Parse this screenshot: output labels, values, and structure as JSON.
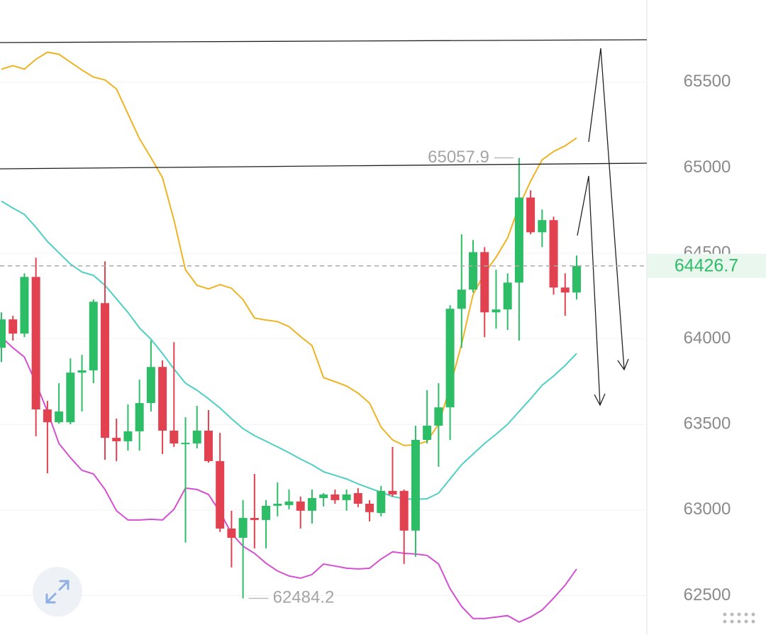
{
  "chart_data": {
    "type": "candlestick",
    "up_color": "#2dbd67",
    "down_color": "#e2414f",
    "open": [
      63948,
      64114,
      64031,
      64362,
      63588,
      63513,
      63513,
      63803,
      63816,
      64209,
      63422,
      63402,
      63460,
      63625,
      63836,
      63464,
      63389,
      63389,
      63464,
      63286,
      62892,
      62838,
      62954,
      62942,
      63025,
      63029,
      63050,
      62996,
      63070,
      63091,
      63058,
      63099,
      63037,
      62983,
      63112,
      63112,
      62880,
      63410,
      63493,
      63600,
      64176,
      64288,
      64507,
      64155,
      64172,
      64329,
      64826,
      64623,
      64694,
      64300,
      64271
    ],
    "high": [
      64155,
      64135,
      64383,
      64474,
      63638,
      63741,
      63886,
      63907,
      64230,
      64453,
      63534,
      63617,
      63762,
      63990,
      63874,
      63981,
      63542,
      63609,
      63584,
      63451,
      62996,
      63058,
      63211,
      63058,
      63161,
      63120,
      63079,
      63120,
      63099,
      63120,
      63120,
      63128,
      63058,
      63141,
      63369,
      63120,
      63493,
      63700,
      63741,
      64197,
      64611,
      64578,
      64536,
      64404,
      64383,
      65057.9,
      64868,
      64756,
      64714,
      64383,
      64487
    ],
    "low": [
      63865,
      63990,
      64010,
      63431,
      63215,
      63505,
      63501,
      63576,
      63741,
      63294,
      63286,
      63348,
      63348,
      63576,
      63327,
      63369,
      62810,
      63360,
      63277,
      62872,
      62665,
      62484.2,
      62776,
      62776,
      62963,
      63004,
      62892,
      62921,
      63021,
      63037,
      62996,
      63017,
      62934,
      62963,
      63079,
      62685,
      62727,
      63389,
      63253,
      63410,
      63948,
      64271,
      64010,
      64060,
      64052,
      63990,
      64611,
      64536,
      64259,
      64135,
      64230
    ],
    "close": [
      64114,
      64031,
      64362,
      63588,
      63513,
      63576,
      63803,
      63816,
      64217,
      63422,
      63402,
      63460,
      63625,
      63836,
      63464,
      63389,
      63393,
      63464,
      63286,
      62892,
      62838,
      62954,
      62942,
      63025,
      63037,
      63050,
      62996,
      63070,
      63091,
      63058,
      63091,
      63037,
      62988,
      63112,
      63091,
      62880,
      63410,
      63493,
      63600,
      64176,
      64288,
      64507,
      64155,
      64172,
      64329,
      64826,
      64623,
      64694,
      64300,
      64271,
      64426.7
    ],
    "lines": [
      {
        "color": "#f0b323",
        "values": [
          65576,
          65596,
          65576,
          65634,
          65675,
          65663,
          65617,
          65571,
          65530,
          65513,
          65460,
          65315,
          65170,
          65058,
          64942,
          64694,
          64404,
          64313,
          64292,
          64317,
          64296,
          64230,
          64122,
          64110,
          64101,
          64072,
          64014,
          63961,
          63774,
          63750,
          63725,
          63683,
          63625,
          63484,
          63410,
          63377,
          63381,
          63402,
          63501,
          63720,
          63969,
          64259,
          64383,
          64478,
          64590,
          64776,
          64921,
          65046,
          65095,
          65128,
          65174
        ]
      },
      {
        "color": "#4fcfc3",
        "values": [
          64805,
          64764,
          64727,
          64652,
          64569,
          64503,
          64437,
          64391,
          64371,
          64313,
          64234,
          64155,
          64064,
          63998,
          63915,
          63824,
          63741,
          63700,
          63650,
          63596,
          63534,
          63476,
          63435,
          63402,
          63369,
          63335,
          63298,
          63265,
          63224,
          63203,
          63182,
          63153,
          63128,
          63104,
          63079,
          63066,
          63062,
          63066,
          63099,
          63182,
          63265,
          63327,
          63389,
          63443,
          63501,
          63576,
          63650,
          63729,
          63783,
          63845,
          63915
        ]
      },
      {
        "color": "#d54fd3",
        "values": [
          64010,
          63948,
          63894,
          63741,
          63576,
          63389,
          63306,
          63232,
          63211,
          63120,
          62996,
          62942,
          62942,
          62946,
          62942,
          63004,
          63128,
          63120,
          63091,
          62988,
          62863,
          62789,
          62747,
          62689,
          62644,
          62615,
          62602,
          62623,
          62685,
          62673,
          62660,
          62656,
          62660,
          62714,
          62756,
          62747,
          62743,
          62735,
          62685,
          62540,
          62437,
          62366,
          62366,
          62375,
          62383,
          62346,
          62375,
          62416,
          62486,
          62561,
          62656
        ]
      }
    ],
    "ylim": [
      62270,
      65980
    ],
    "yticks": [
      62500,
      63000,
      63500,
      64000,
      64500,
      65000,
      65500
    ],
    "grid": true
  }
}
